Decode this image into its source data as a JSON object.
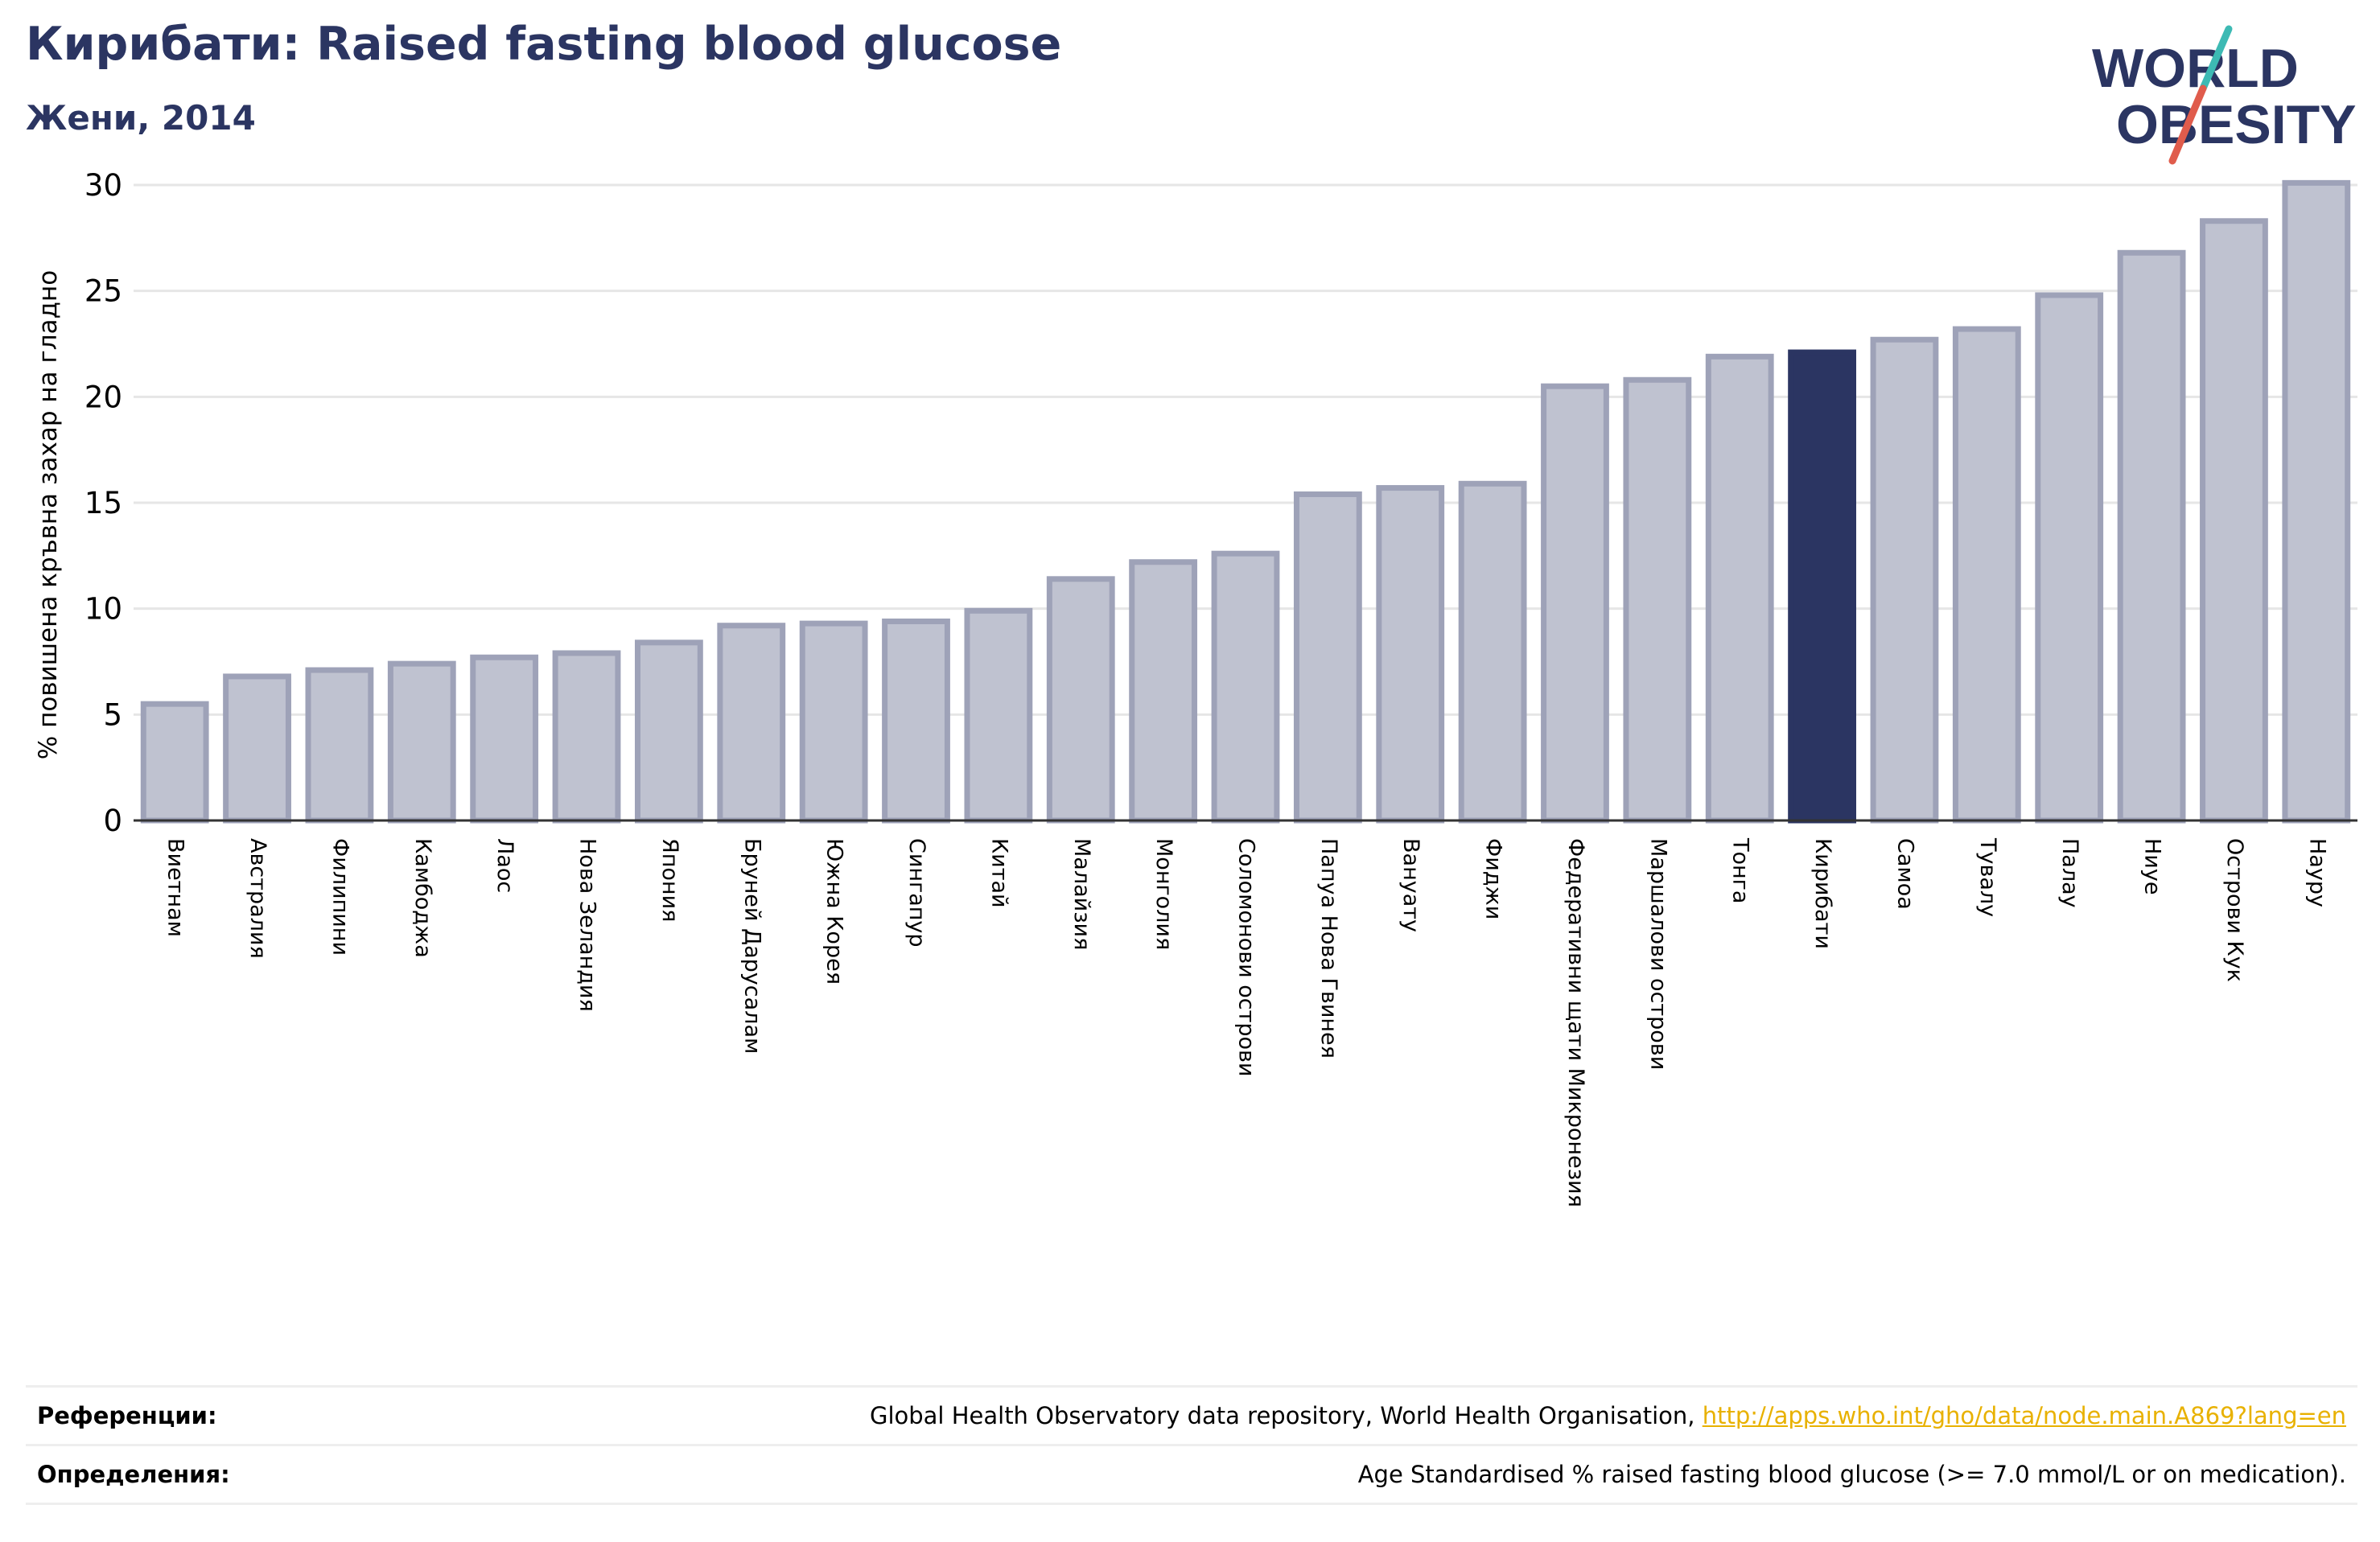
{
  "header": {
    "title": "Кирибати: Raised fasting blood glucose",
    "subtitle": "Жени, 2014"
  },
  "logo": {
    "line1": "WORLD",
    "line2": "OBESITY",
    "text_color": "#2b3562",
    "slash_top_color": "#3dbab4",
    "slash_bottom_color": "#e05c4c"
  },
  "chart_data": {
    "type": "bar",
    "title": "Кирибати: Raised fasting blood glucose",
    "subtitle": "Жени, 2014",
    "ylabel": "% повишена кръвна захар на гладно",
    "xlabel": "",
    "ylim": [
      0,
      30
    ],
    "yticks": [
      0,
      5,
      10,
      15,
      20,
      25,
      30
    ],
    "grid": true,
    "highlight": "Кирибати",
    "colors": {
      "bar": "#bfc2d0",
      "bar_edge": "#9ea2b8",
      "highlight": "#2b3562"
    },
    "categories": [
      "Виетнам",
      "Австралия",
      "Филипини",
      "Камбоджа",
      "Лаос",
      "Нова Зеландия",
      "Япония",
      "Бруней Дарусалам",
      "Южна Корея",
      "Сингапур",
      "Китай",
      "Малайзия",
      "Монголия",
      "Соломонови острови",
      "Папуа Нова Гвинея",
      "Вануату",
      "Фиджи",
      "Федеративни щати Микронезия",
      "Маршалови острови",
      "Тонга",
      "Кирибати",
      "Самоа",
      "Тувалу",
      "Палау",
      "Ниуе",
      "Острови Кук",
      "Науру"
    ],
    "values": [
      5.5,
      6.8,
      7.1,
      7.4,
      7.7,
      7.9,
      8.4,
      9.2,
      9.3,
      9.4,
      9.9,
      11.4,
      12.2,
      12.6,
      15.4,
      15.7,
      15.9,
      20.5,
      20.8,
      21.9,
      22.1,
      22.7,
      23.2,
      24.8,
      26.8,
      28.3,
      30.1
    ]
  },
  "references": [
    {
      "label": "Референции:",
      "text": "Global Health Observatory data repository, World Health Organisation, ",
      "link": "http://apps.who.int/gho/data/node.main.A869?lang=en"
    },
    {
      "label": "Определения:",
      "text": "Age Standardised % raised fasting blood glucose (>= 7.0 mmol/L or on medication).",
      "link": ""
    }
  ]
}
